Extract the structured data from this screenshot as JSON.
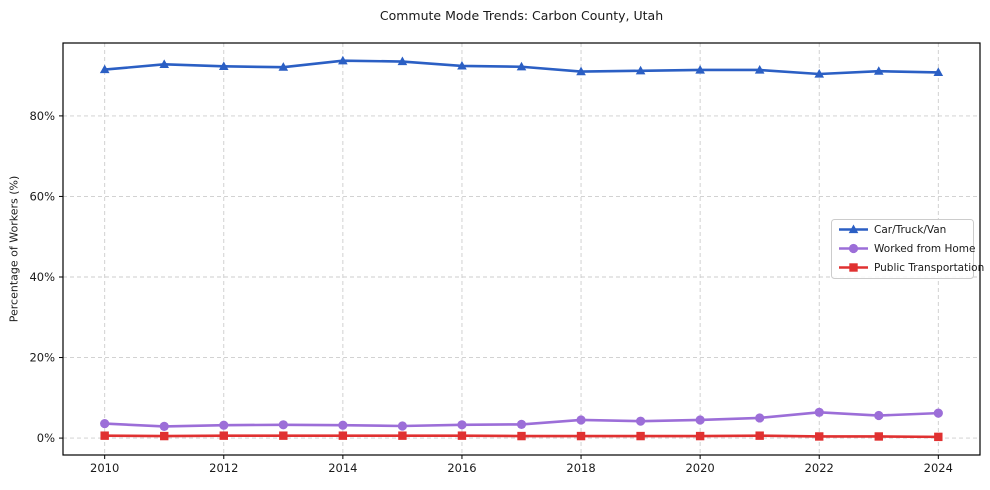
{
  "chart_data": {
    "type": "line",
    "title": "Commute Mode Trends: Carbon County, Utah",
    "xlabel": "",
    "ylabel": "Percentage of Workers (%)",
    "x": [
      2010,
      2011,
      2012,
      2013,
      2014,
      2015,
      2016,
      2017,
      2018,
      2019,
      2020,
      2021,
      2022,
      2023,
      2024
    ],
    "series": [
      {
        "name": "Car/Truck/Van",
        "color": "#2b5fc4",
        "marker": "triangle",
        "values": [
          91.5,
          92.8,
          92.3,
          92.1,
          93.7,
          93.5,
          92.4,
          92.2,
          91.0,
          91.2,
          91.4,
          91.4,
          90.4,
          91.1,
          90.8
        ]
      },
      {
        "name": "Worked from Home",
        "color": "#9c6ed8",
        "marker": "circle",
        "values": [
          3.6,
          2.9,
          3.2,
          3.3,
          3.2,
          3.0,
          3.3,
          3.4,
          4.5,
          4.2,
          4.5,
          5.0,
          6.4,
          5.6,
          6.2
        ]
      },
      {
        "name": "Public Transportation",
        "color": "#e03131",
        "marker": "square",
        "values": [
          0.6,
          0.5,
          0.6,
          0.6,
          0.6,
          0.6,
          0.6,
          0.5,
          0.5,
          0.5,
          0.5,
          0.6,
          0.4,
          0.4,
          0.3
        ]
      }
    ],
    "xticks": [
      2010,
      2012,
      2014,
      2016,
      2018,
      2020,
      2022,
      2024
    ],
    "xtick_labels": [
      "2010",
      "2012",
      "2014",
      "2016",
      "2018",
      "2020",
      "2022",
      "2024"
    ],
    "yticks": [
      0,
      20,
      40,
      60,
      80
    ],
    "ytick_labels": [
      "0%",
      "20%",
      "40%",
      "60%",
      "80%"
    ],
    "xlim": [
      2009.3,
      2024.7
    ],
    "ylim": [
      -4.2,
      98.1
    ],
    "grid": true,
    "legend_position": "center right",
    "colors": {
      "grid": "#cccccc",
      "frame": "#000000",
      "text": "#1a1a1a",
      "legend_border": "#cccccc",
      "legend_bg": "#ffffff"
    }
  }
}
